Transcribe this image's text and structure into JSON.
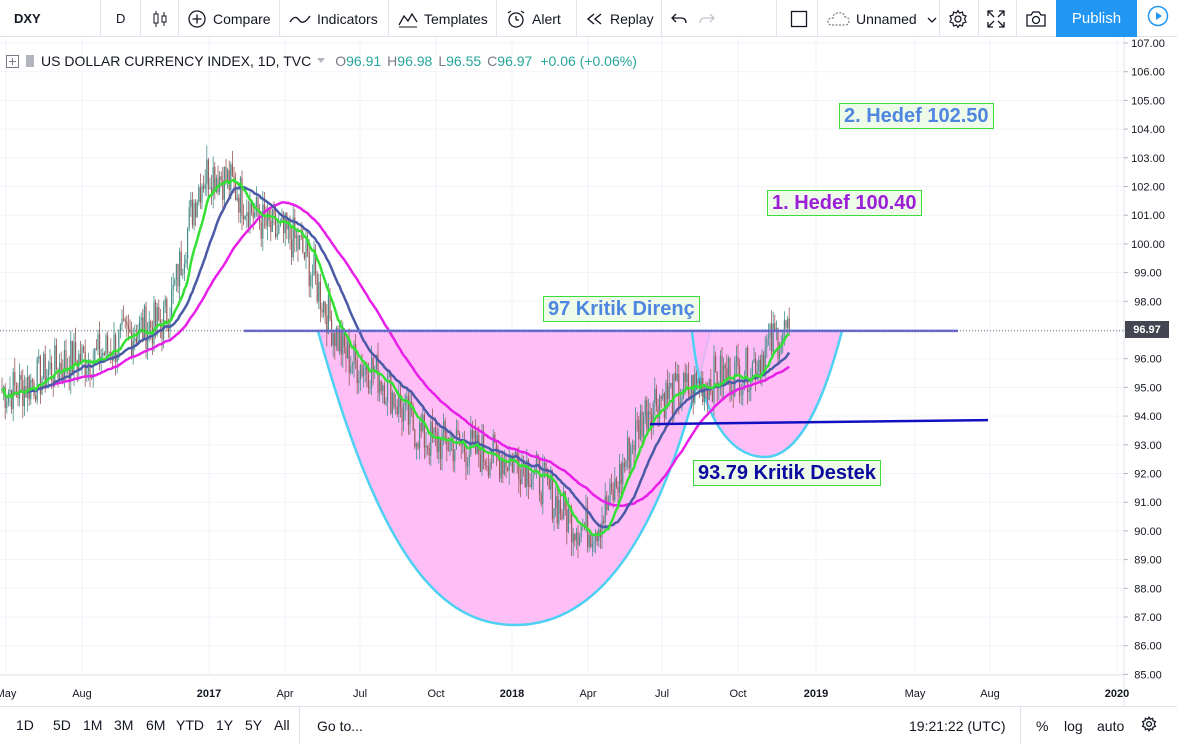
{
  "toolbar": {
    "symbol": "DXY",
    "interval": "D",
    "compare": "Compare",
    "indicators": "Indicators",
    "templates": "Templates",
    "alert": "Alert",
    "replay": "Replay",
    "layout_name": "Unnamed",
    "publish": "Publish"
  },
  "legend": {
    "title": "US DOLLAR CURRENCY INDEX, 1D, TVC",
    "o_label": "O",
    "o_value": "96.91",
    "h_label": "H",
    "h_value": "96.98",
    "l_label": "L",
    "l_value": "96.55",
    "c_label": "C",
    "c_value": "96.97",
    "change": "+0.06 (+0.06%)"
  },
  "price_axis": {
    "ticks": [
      "107.00",
      "106.00",
      "105.00",
      "104.00",
      "103.00",
      "102.00",
      "101.00",
      "100.00",
      "99.00",
      "98.00",
      "97.00",
      "96.00",
      "95.00",
      "94.00",
      "93.00",
      "92.00",
      "91.00",
      "90.00",
      "89.00",
      "88.00",
      "87.00",
      "86.00",
      "85.00"
    ],
    "current_price": "96.97"
  },
  "time_axis": {
    "ticks": [
      "May",
      "Aug",
      "2017",
      "Apr",
      "Jul",
      "Oct",
      "2018",
      "Apr",
      "Jul",
      "Oct",
      "2019",
      "May",
      "Aug",
      "2020"
    ],
    "bold": [
      "2017",
      "2018",
      "2019",
      "2020"
    ]
  },
  "annotations": {
    "target2": "2. Hedef 102.50",
    "target1": "1. Hedef 100.40",
    "resistance": "97 Kritik Direnç",
    "support": "93.79 Kritik Destek"
  },
  "bottom": {
    "ranges": [
      "1D",
      "5D",
      "1M",
      "3M",
      "6M",
      "YTD",
      "1Y",
      "5Y",
      "All"
    ],
    "goto": "Go to...",
    "clock": "19:21:22 (UTC)",
    "percent": "%",
    "log": "log",
    "auto": "auto"
  },
  "colors": {
    "price_series": "#7b8596",
    "ma_fast": "#33e033",
    "ma_mid": "#4a5aa6",
    "ma_slow": "#e81fe8",
    "cup_fill": "#ffb3f5",
    "cup_stroke": "#4dd0f2",
    "resistance_line": "#6e6ed6",
    "support_line": "#1010c0",
    "publish": "#2196f3",
    "annot_target2": "#4f86e0",
    "annot_target1": "#9a1fd6",
    "annot_resistance": "#4f86e0",
    "annot_support": "#0a0a9e"
  },
  "chart_data": {
    "type": "candlestick",
    "ylim": [
      85.0,
      107.0
    ],
    "x": [
      "2016-05",
      "2016-08",
      "2016-11",
      "2017-01",
      "2017-04",
      "2017-07",
      "2017-10",
      "2018-01",
      "2018-04",
      "2018-07",
      "2018-10",
      "2018-12"
    ],
    "close": [
      94.9,
      96.0,
      97.2,
      102.5,
      100.3,
      95.8,
      93.1,
      92.5,
      90.1,
      94.7,
      95.5,
      96.97
    ],
    "resistance_level": 96.97,
    "support_level": 93.79
  }
}
